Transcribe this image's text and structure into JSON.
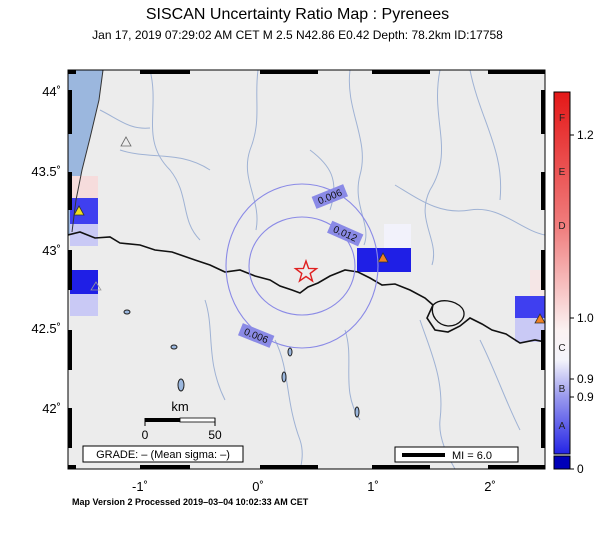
{
  "header": {
    "title": "SISCAN Uncertainty Ratio Map : Pyrenees",
    "subtitle": "Jan 17, 2019 07:29:02 AM CET   M 2.5   N42.86 E0.42   Depth: 78.2km   ID:17758"
  },
  "map": {
    "lat_labels": [
      "44˚",
      "43.5˚",
      "43˚",
      "42.5˚",
      "42˚"
    ],
    "lon_labels": [
      "-1˚",
      "0˚",
      "1˚",
      "2˚"
    ],
    "contour_labels": [
      "0.006",
      "0.012",
      "0.006"
    ],
    "scale_bar": {
      "unit": "km",
      "start": "0",
      "end": "50"
    },
    "grade_text": "GRADE: – (Mean sigma: –)",
    "mi_legend": "MI = 6.0",
    "colors": {
      "land": "#ececec",
      "sea": "#9bb7de",
      "river": "#9fb2d4",
      "contour": "#8a8ae6",
      "epicenter": "#e02020"
    }
  },
  "colorbar": {
    "letters": [
      "F",
      "E",
      "D",
      "C",
      "B",
      "A"
    ],
    "values": [
      "1.2",
      "1.0",
      "0.9",
      "0.9",
      "0"
    ]
  },
  "footer": {
    "text": "Map Version 2 Processed 2019–03–04 10:02:33 AM CET"
  }
}
